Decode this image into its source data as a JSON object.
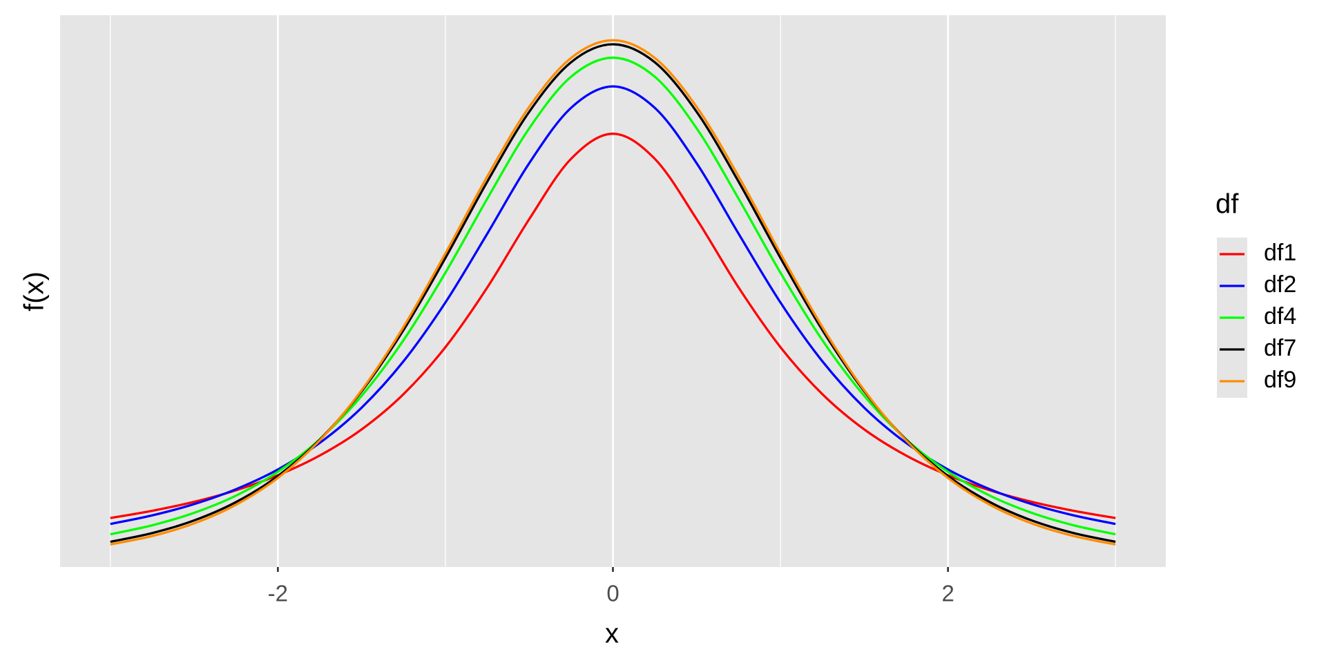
{
  "chart_data": {
    "type": "line",
    "x_label": "x",
    "y_label": "f(x)",
    "legend_title": "df",
    "x": [
      -3,
      -2.75,
      -2.5,
      -2.25,
      -2,
      -1.75,
      -1.5,
      -1.25,
      -1,
      -0.75,
      -0.5,
      -0.25,
      0,
      0.25,
      0.5,
      0.75,
      1,
      1.25,
      1.5,
      1.75,
      2,
      2.25,
      2.5,
      2.75,
      3
    ],
    "series": [
      {
        "name": "df1",
        "color": "#ff0000",
        "values": [
          0.0318,
          0.0372,
          0.0439,
          0.0525,
          0.0637,
          0.0784,
          0.0979,
          0.1242,
          0.1592,
          0.2037,
          0.2546,
          0.2996,
          0.3183,
          0.2996,
          0.2546,
          0.2037,
          0.1592,
          0.1242,
          0.0979,
          0.0784,
          0.0637,
          0.0525,
          0.0439,
          0.0372,
          0.0318
        ]
      },
      {
        "name": "df2",
        "color": "#0000ff",
        "values": [
          0.0274,
          0.0338,
          0.0422,
          0.0533,
          0.068,
          0.0878,
          0.1141,
          0.1487,
          0.1925,
          0.2438,
          0.2963,
          0.3376,
          0.3536,
          0.3376,
          0.2963,
          0.2438,
          0.1925,
          0.1487,
          0.1141,
          0.0878,
          0.068,
          0.0533,
          0.0422,
          0.0338,
          0.0274
        ]
      },
      {
        "name": "df4",
        "color": "#00ff00",
        "values": [
          0.0197,
          0.0264,
          0.0357,
          0.0485,
          0.0663,
          0.0905,
          0.1229,
          0.1644,
          0.2147,
          0.2699,
          0.3223,
          0.3608,
          0.375,
          0.3608,
          0.3223,
          0.2699,
          0.2147,
          0.1644,
          0.1229,
          0.0905,
          0.0663,
          0.0485,
          0.0357,
          0.0264,
          0.0197
        ]
      },
      {
        "name": "df7",
        "color": "#000000",
        "values": [
          0.0141,
          0.0206,
          0.03,
          0.0437,
          0.0631,
          0.0902,
          0.1263,
          0.172,
          0.2257,
          0.2826,
          0.3346,
          0.3716,
          0.385,
          0.3716,
          0.3346,
          0.2826,
          0.2257,
          0.172,
          0.1263,
          0.0902,
          0.0631,
          0.0437,
          0.03,
          0.0206,
          0.0141
        ]
      },
      {
        "name": "df9",
        "color": "#ff8c00",
        "values": [
          0.0121,
          0.0184,
          0.0278,
          0.0417,
          0.0617,
          0.0897,
          0.1271,
          0.1743,
          0.2291,
          0.2865,
          0.3383,
          0.3748,
          0.388,
          0.3748,
          0.3383,
          0.2865,
          0.2291,
          0.1743,
          0.1271,
          0.0897,
          0.0617,
          0.0417,
          0.0278,
          0.0184,
          0.0121
        ]
      }
    ],
    "xlim": [
      -3.3,
      3.3
    ],
    "xticks": [
      -2,
      0,
      2
    ],
    "xminor": [
      -3,
      -1,
      1,
      3
    ],
    "ylim": [
      -0.0047,
      0.4067
    ],
    "grid": true,
    "legend": "right"
  }
}
